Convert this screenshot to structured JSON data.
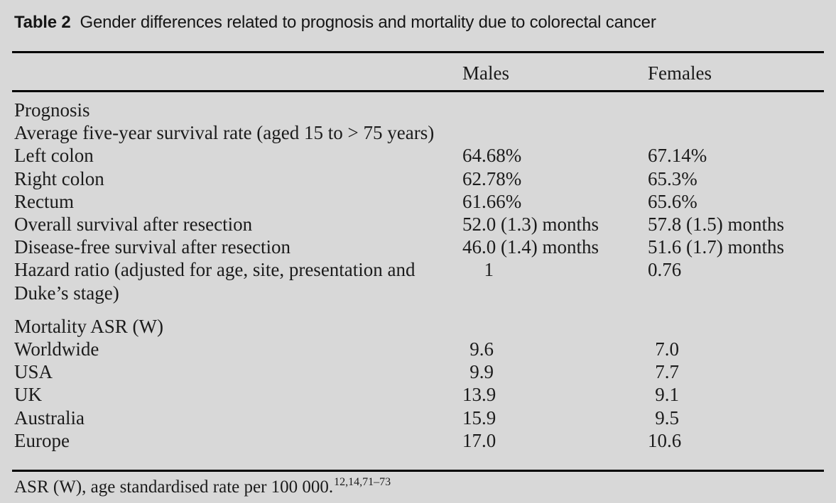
{
  "page": {
    "background_color": "#d8d8d8",
    "text_color": "#1b1b1b",
    "rule_color": "#000000"
  },
  "title": {
    "label": "Table 2",
    "text": "Gender differences related to prognosis and mortality due to colorectal cancer"
  },
  "columns": {
    "males": "Males",
    "females": "Females"
  },
  "sections": [
    {
      "name": "prognosis",
      "rows": [
        {
          "label": "Prognosis"
        },
        {
          "label": "Average five-year survival rate (aged 15 to > 75 years)"
        },
        {
          "label": "Left colon",
          "males": "64.68%",
          "females": "67.14%"
        },
        {
          "label": "Right colon",
          "males": "62.78%",
          "females": "65.3%"
        },
        {
          "label": "Rectum",
          "males": "61.66%",
          "females": "65.6%"
        },
        {
          "label": "Overall survival after resection",
          "males": "52.0 (1.3) months",
          "females": "57.8 (1.5) months"
        },
        {
          "label": "Disease-free survival after resection",
          "males": "46.0 (1.4) months",
          "females": "51.6 (1.7) months"
        },
        {
          "label": "Hazard ratio (adjusted for age, site, presentation and Duke’s stage)",
          "males": "1",
          "females": "0.76",
          "numeric": true
        }
      ]
    },
    {
      "name": "mortality",
      "rows": [
        {
          "label": "Mortality ASR (W)"
        },
        {
          "label": "Worldwide",
          "males": "9.6",
          "females": "7.0",
          "numeric": true
        },
        {
          "label": "USA",
          "males": "9.9",
          "females": "7.7",
          "numeric": true
        },
        {
          "label": "UK",
          "males": "13.9",
          "females": "9.1",
          "numeric": true
        },
        {
          "label": "Australia",
          "males": "15.9",
          "females": "9.5",
          "numeric": true
        },
        {
          "label": "Europe",
          "males": "17.0",
          "females": "10.6",
          "numeric": true
        }
      ]
    }
  ],
  "footnote": {
    "text": "ASR (W), age standardised rate per 100 000.",
    "references": "12,14,71–73"
  }
}
